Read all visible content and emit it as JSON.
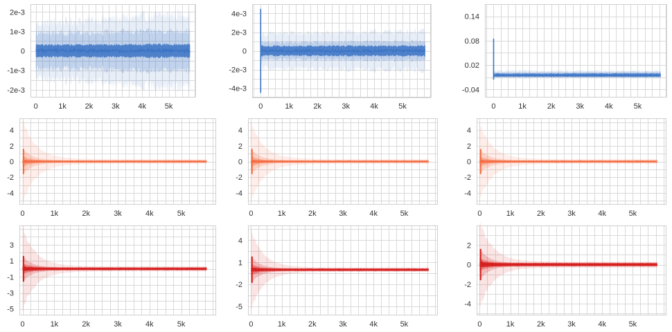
{
  "colors": {
    "blue": "#3a73c4",
    "orange": "#f46d43",
    "red": "#d62020",
    "grid": "#d9d9d9",
    "text": "#333333"
  },
  "chart_data": [
    {
      "id": "p11",
      "type": "area",
      "color": "blue",
      "shape": "blue-a",
      "xlim": [
        -200,
        6000
      ],
      "ylim": [
        -0.0024,
        0.0024
      ],
      "xticks": [
        0,
        1000,
        2000,
        3000,
        4000,
        5000
      ],
      "xtick_labels": [
        "0",
        "1k",
        "2k",
        "3k",
        "4k",
        "5k"
      ],
      "yticks": [
        0.002,
        0.001,
        0,
        -0.001,
        -0.002
      ],
      "ytick_labels": [
        "2e-3",
        "1e-3",
        "0",
        "-1e-3",
        "-2e-3"
      ],
      "x_end": 5800,
      "peak": 0,
      "outer": 0.0014,
      "outer_end": 0.0019,
      "mid": 0.0009,
      "inner": 0.0003
    },
    {
      "id": "p12",
      "type": "area",
      "color": "blue",
      "shape": "blue-spike",
      "xlim": [
        -300,
        6000
      ],
      "ylim": [
        -0.005,
        0.005
      ],
      "xticks": [
        0,
        1000,
        2000,
        3000,
        4000,
        5000
      ],
      "xtick_labels": [
        "0",
        "1k",
        "2k",
        "3k",
        "4k",
        "5k"
      ],
      "yticks": [
        0.004,
        0.002,
        0,
        -0.002,
        -0.004
      ],
      "ytick_labels": [
        "4e-3",
        "2e-3",
        "0",
        "-2e-3",
        "-4e-3"
      ],
      "x_end": 5800,
      "peak": 0.0045,
      "outer": 0.0018,
      "outer_end": 0.0021,
      "mid": 0.0009,
      "inner": 0.0005
    },
    {
      "id": "p13",
      "type": "area",
      "color": "blue",
      "shape": "blue-spike-up",
      "xlim": [
        -300,
        6000
      ],
      "ylim": [
        -0.06,
        0.17
      ],
      "xticks": [
        0,
        1000,
        2000,
        3000,
        4000,
        5000
      ],
      "xtick_labels": [
        "0",
        "1k",
        "2k",
        "3k",
        "4k",
        "5k"
      ],
      "yticks": [
        0.14,
        0.08,
        0.02,
        -0.04
      ],
      "ytick_labels": [
        "0.14",
        "0.08",
        "0.02",
        "-0.04"
      ],
      "x_end": 5800,
      "peak": 0.085,
      "outer": 0.012,
      "outer_end": 0.012,
      "mid": 0.008,
      "inner": 0.005
    },
    {
      "id": "p21",
      "type": "area",
      "color": "orange",
      "shape": "decay",
      "xlim": [
        -100,
        6100
      ],
      "ylim": [
        -5.5,
        5.5
      ],
      "xticks": [
        0,
        1000,
        2000,
        3000,
        4000,
        5000
      ],
      "xtick_labels": [
        "0",
        "1k",
        "2k",
        "3k",
        "4k",
        "5k"
      ],
      "yticks": [
        4,
        2,
        0,
        -2,
        -4
      ],
      "ytick_labels": [
        "4",
        "2",
        "0",
        "-2",
        "-4"
      ],
      "x_end": 5800,
      "peak": 5.2,
      "outer": 5.2,
      "outer_end": 0.3,
      "mid": 1.6,
      "inner": 0.15
    },
    {
      "id": "p22",
      "type": "area",
      "color": "orange",
      "shape": "decay",
      "xlim": [
        -100,
        6100
      ],
      "ylim": [
        -5.5,
        5.5
      ],
      "xticks": [
        0,
        1000,
        2000,
        3000,
        4000,
        5000
      ],
      "xtick_labels": [
        "0",
        "1k",
        "2k",
        "3k",
        "4k",
        "5k"
      ],
      "yticks": [
        4,
        2,
        0,
        -2,
        -4
      ],
      "ytick_labels": [
        "4",
        "2",
        "0",
        "-2",
        "-4"
      ],
      "x_end": 5800,
      "peak": 5.0,
      "outer": 5.0,
      "outer_end": 0.3,
      "mid": 1.6,
      "inner": 0.15
    },
    {
      "id": "p23",
      "type": "area",
      "color": "orange",
      "shape": "decay",
      "xlim": [
        -100,
        6100
      ],
      "ylim": [
        -5.5,
        5.5
      ],
      "xticks": [
        0,
        1000,
        2000,
        3000,
        4000,
        5000
      ],
      "xtick_labels": [
        "0",
        "1k",
        "2k",
        "3k",
        "4k",
        "5k"
      ],
      "yticks": [
        4,
        2,
        0,
        -2,
        -4
      ],
      "ytick_labels": [
        "4",
        "2",
        "0",
        "-2",
        "-4"
      ],
      "x_end": 5800,
      "peak": 4.8,
      "outer": 4.8,
      "outer_end": 0.3,
      "mid": 1.6,
      "inner": 0.15
    },
    {
      "id": "p31",
      "type": "area",
      "color": "red",
      "shape": "decay",
      "xlim": [
        -100,
        6100
      ],
      "ylim": [
        -5.8,
        5.4
      ],
      "xticks": [
        0,
        1000,
        2000,
        3000,
        4000,
        5000
      ],
      "xtick_labels": [
        "0",
        "1k",
        "2k",
        "3k",
        "4k",
        "5k"
      ],
      "yticks": [
        3,
        1,
        -1,
        -3,
        -5
      ],
      "ytick_labels": [
        "3",
        "1",
        "-1",
        "-3",
        "-5"
      ],
      "x_end": 5800,
      "peak": 5.0,
      "outer": 5.0,
      "outer_end": 0.3,
      "mid": 1.6,
      "inner": 0.2
    },
    {
      "id": "p32",
      "type": "area",
      "color": "red",
      "shape": "decay",
      "xlim": [
        -100,
        6100
      ],
      "ylim": [
        -6.2,
        6.0
      ],
      "xticks": [
        0,
        1000,
        2000,
        3000,
        4000,
        5000
      ],
      "xtick_labels": [
        "0",
        "1k",
        "2k",
        "3k",
        "4k",
        "5k"
      ],
      "yticks": [
        4,
        1,
        -2,
        -5
      ],
      "ytick_labels": [
        "4",
        "1",
        "-2",
        "-5"
      ],
      "x_end": 5800,
      "peak": 5.2,
      "outer": 5.2,
      "outer_end": 0.3,
      "mid": 1.8,
      "inner": 0.2
    },
    {
      "id": "p33",
      "type": "area",
      "color": "red",
      "shape": "decay",
      "xlim": [
        -100,
        6100
      ],
      "ylim": [
        -5.2,
        4.0
      ],
      "xticks": [
        0,
        1000,
        2000,
        3000,
        4000,
        5000
      ],
      "xtick_labels": [
        "0",
        "1k",
        "2k",
        "3k",
        "4k",
        "5k"
      ],
      "yticks": [
        2,
        0,
        -2,
        -4
      ],
      "ytick_labels": [
        "2",
        "0",
        "-2",
        "-4"
      ],
      "x_end": 5800,
      "peak": 4.5,
      "outer": 4.5,
      "outer_end": 0.3,
      "mid": 1.6,
      "inner": 0.2
    }
  ]
}
